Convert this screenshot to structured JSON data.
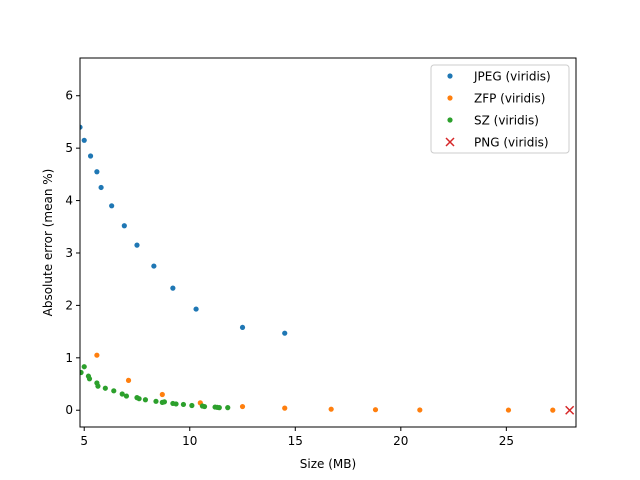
{
  "chart_data": {
    "type": "scatter",
    "title": "",
    "xlabel": "Size (MB)",
    "ylabel": "Absolute error (mean %)",
    "xlim": [
      4.8,
      28.3
    ],
    "ylim": [
      -0.32,
      6.72
    ],
    "x_ticks": [
      5,
      10,
      15,
      20,
      25
    ],
    "y_ticks": [
      0,
      1,
      2,
      3,
      4,
      5,
      6
    ],
    "grid": false,
    "legend_position": "top-right",
    "series": [
      {
        "name": "JPEG (viridis)",
        "color": "#1f77b4",
        "marker": "dot",
        "points": [
          [
            4.8,
            5.4
          ],
          [
            5.0,
            5.15
          ],
          [
            5.3,
            4.85
          ],
          [
            5.6,
            4.55
          ],
          [
            5.8,
            4.25
          ],
          [
            6.3,
            3.9
          ],
          [
            6.9,
            3.52
          ],
          [
            7.5,
            3.15
          ],
          [
            8.3,
            2.75
          ],
          [
            9.2,
            2.33
          ],
          [
            10.3,
            1.93
          ],
          [
            12.5,
            1.58
          ],
          [
            14.5,
            1.47
          ]
        ]
      },
      {
        "name": "ZFP (viridis)",
        "color": "#ff7f0e",
        "marker": "dot",
        "points": [
          [
            5.6,
            1.05
          ],
          [
            7.1,
            0.57
          ],
          [
            8.7,
            0.3
          ],
          [
            10.5,
            0.14
          ],
          [
            12.5,
            0.07
          ],
          [
            14.5,
            0.04
          ],
          [
            16.7,
            0.02
          ],
          [
            18.8,
            0.01
          ],
          [
            20.9,
            0.005
          ],
          [
            25.1,
            0.003
          ],
          [
            27.2,
            0.002
          ]
        ]
      },
      {
        "name": "SZ (viridis)",
        "color": "#2ca02c",
        "marker": "dot",
        "points": [
          [
            4.85,
            0.72
          ],
          [
            5.0,
            0.83
          ],
          [
            5.2,
            0.65
          ],
          [
            5.25,
            0.6
          ],
          [
            5.6,
            0.52
          ],
          [
            5.65,
            0.46
          ],
          [
            6.0,
            0.42
          ],
          [
            6.4,
            0.37
          ],
          [
            6.8,
            0.31
          ],
          [
            7.0,
            0.27
          ],
          [
            7.5,
            0.24
          ],
          [
            7.6,
            0.22
          ],
          [
            7.9,
            0.2
          ],
          [
            8.4,
            0.17
          ],
          [
            8.7,
            0.15
          ],
          [
            8.8,
            0.16
          ],
          [
            9.2,
            0.13
          ],
          [
            9.35,
            0.12
          ],
          [
            9.7,
            0.11
          ],
          [
            10.1,
            0.09
          ],
          [
            10.6,
            0.08
          ],
          [
            10.7,
            0.07
          ],
          [
            11.2,
            0.06
          ],
          [
            11.3,
            0.055
          ],
          [
            11.4,
            0.05
          ],
          [
            11.8,
            0.05
          ]
        ]
      },
      {
        "name": "PNG (viridis)",
        "color": "#d62728",
        "marker": "x",
        "points": [
          [
            28.0,
            0.0
          ]
        ]
      }
    ]
  }
}
